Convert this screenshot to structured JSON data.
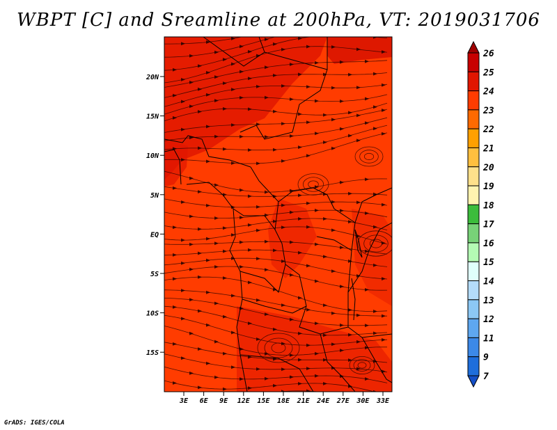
{
  "title": "WBPT [C] and Sreamline at 200hPa, VT: 2019031706",
  "footer": "GrADS: IGES/COLA",
  "map": {
    "fill_color": "#ff3c00",
    "lat_ticks": [
      "20N",
      "15N",
      "10N",
      "5N",
      "EQ",
      "5S",
      "10S",
      "15S"
    ],
    "lon_ticks": [
      "3E",
      "6E",
      "9E",
      "12E",
      "15E",
      "18E",
      "21E",
      "24E",
      "27E",
      "30E",
      "33E"
    ]
  },
  "colorbar": {
    "levels": [
      "26",
      "25",
      "24",
      "23",
      "22",
      "21",
      "20",
      "19",
      "18",
      "17",
      "16",
      "15",
      "14",
      "13",
      "12",
      "11",
      "9",
      "7"
    ],
    "colors": [
      "#a00000",
      "#c80000",
      "#e11600",
      "#ff3c00",
      "#ff6a00",
      "#ffa000",
      "#ffbf3f",
      "#fee08b",
      "#fff3b0",
      "#3cbc3c",
      "#78d278",
      "#b4fab4",
      "#e0fffc",
      "#b4dcfa",
      "#8cc8f5",
      "#5ea7f0",
      "#3c89e8",
      "#1e6edc",
      "#1450c8"
    ]
  }
}
